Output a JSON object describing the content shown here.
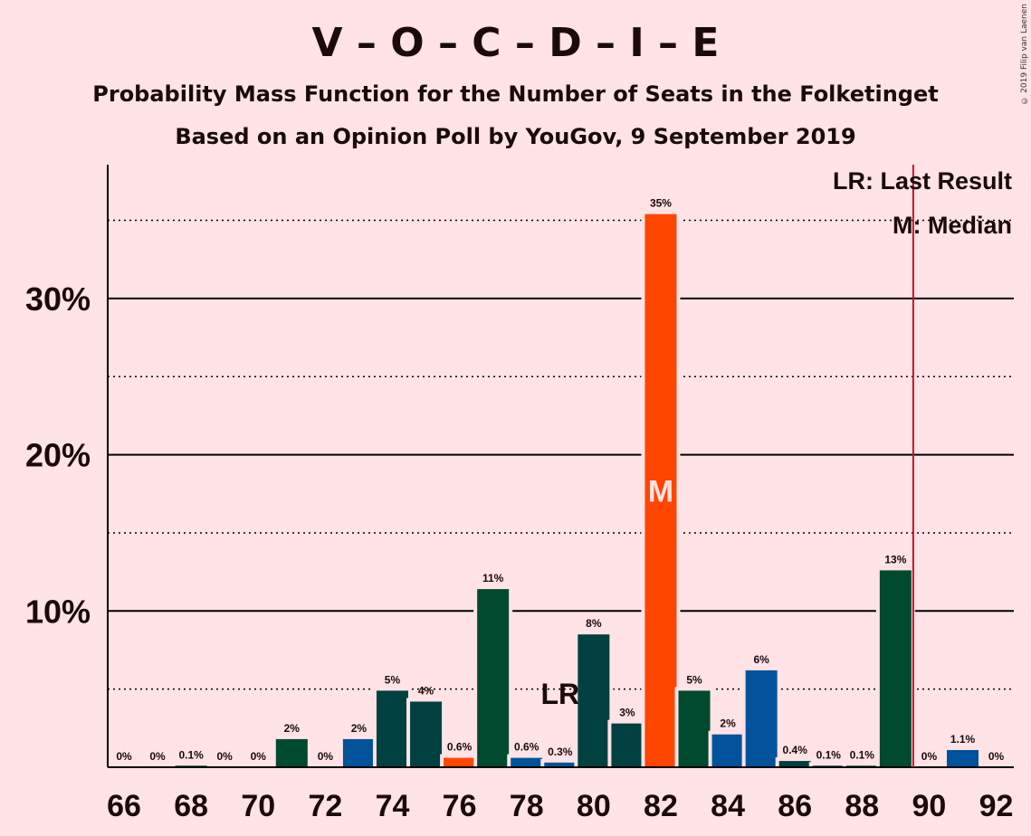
{
  "header": {
    "title": "V – O – C – D – I – E",
    "subtitle1": "Probability Mass Function for the Number of Seats in the Folketinget",
    "subtitle2": "Based on an Opinion Poll by YouGov, 9 September 2019",
    "copyright": "© 2019 Filip van Laenen"
  },
  "legend": {
    "lr": "LR: Last Result",
    "m": "M: Median"
  },
  "chart_data": {
    "type": "bar",
    "x": [
      66,
      67,
      68,
      69,
      70,
      71,
      72,
      73,
      74,
      75,
      76,
      77,
      78,
      79,
      80,
      81,
      82,
      83,
      84,
      85,
      86,
      87,
      88,
      89,
      90,
      91,
      92
    ],
    "values": [
      0,
      0,
      0.1,
      0,
      0,
      1.8,
      0,
      1.8,
      4.9,
      4.2,
      0.6,
      11.4,
      0.6,
      0.3,
      8.5,
      2.8,
      35.4,
      4.9,
      2.1,
      6.2,
      0.4,
      0.1,
      0.1,
      12.6,
      0,
      1.1,
      0
    ],
    "labels": [
      "0%",
      "0%",
      "0.1%",
      "0%",
      "0%",
      "2%",
      "0%",
      "2%",
      "5%",
      "4%",
      "0.6%",
      "11%",
      "0.6%",
      "0.3%",
      "8%",
      "3%",
      "35%",
      "5%",
      "2%",
      "6%",
      "0.4%",
      "0.1%",
      "0.1%",
      "13%",
      "0%",
      "1.1%",
      "0%"
    ],
    "colors": [
      "#004A2F",
      "#004A2F",
      "#004A2F",
      "#004A2F",
      "#004A2F",
      "#004A2F",
      "#004A2F",
      "#00529A",
      "#004040",
      "#004040",
      "#FF4500",
      "#004A2F",
      "#00529A",
      "#00529A",
      "#004040",
      "#004040",
      "#FF4500",
      "#004A2F",
      "#00529A",
      "#00529A",
      "#004040",
      "#004040",
      "#004A2F",
      "#004A2F",
      "#004A2F",
      "#00529A",
      "#004A2F"
    ],
    "x_ticks": [
      "66",
      "68",
      "70",
      "72",
      "74",
      "76",
      "78",
      "80",
      "82",
      "84",
      "86",
      "88",
      "90",
      "92"
    ],
    "y_ticks": [
      "10%",
      "20%",
      "30%"
    ],
    "ylim": [
      0,
      38
    ],
    "median": 82,
    "median_label": "M",
    "last_result": 79,
    "last_result_label": "LR",
    "majority": 90,
    "median_color": "#FFE3E6",
    "majority_line_color": "#C8102E"
  }
}
